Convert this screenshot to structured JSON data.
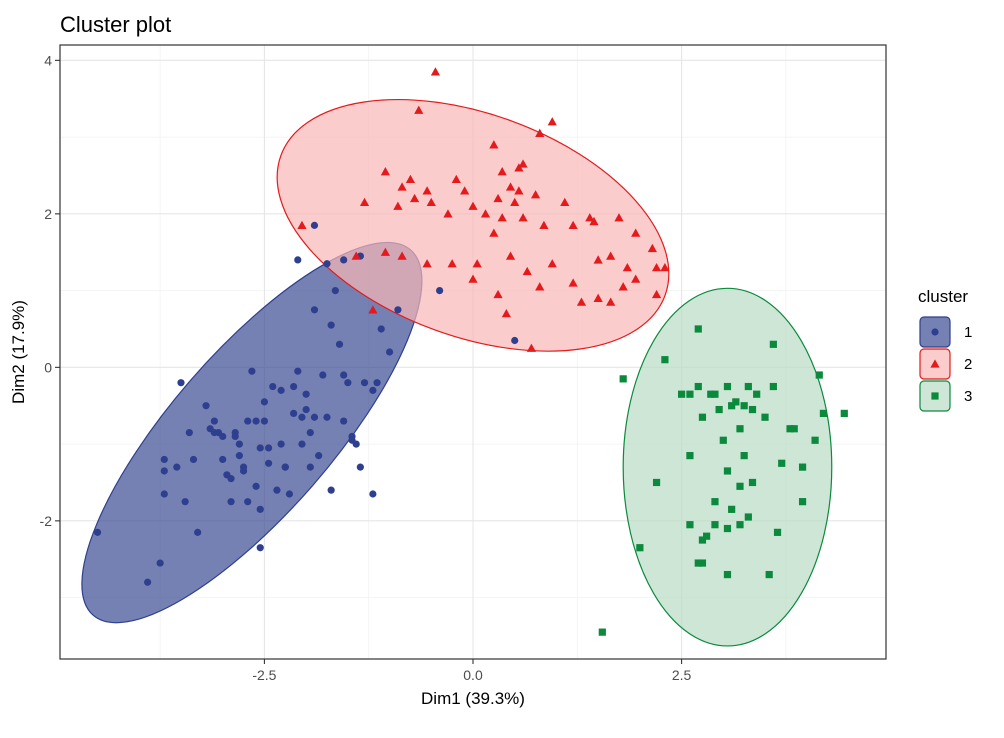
{
  "chart_data": {
    "type": "scatter",
    "title": "Cluster plot",
    "xlabel": "Dim1 (39.3%)",
    "ylabel": "Dim2 (17.9%)",
    "xlim": [
      -4.95,
      4.95
    ],
    "ylim": [
      -3.8,
      4.2
    ],
    "x_ticks": [
      {
        "value": -2.5,
        "label": "-2.5"
      },
      {
        "value": 0,
        "label": "0.0"
      },
      {
        "value": 2.5,
        "label": "2.5"
      }
    ],
    "y_ticks": [
      {
        "value": -2,
        "label": "-2"
      },
      {
        "value": 0,
        "label": "0"
      },
      {
        "value": 2,
        "label": "2"
      },
      {
        "value": 4,
        "label": "4"
      }
    ],
    "grid": true,
    "legend": {
      "title": "cluster",
      "position": "right"
    },
    "series": [
      {
        "name": "1",
        "marker": "circle",
        "color": "#2e3f8f",
        "fill": "#3b4a93",
        "ellipse": {
          "cx": -2.65,
          "cy": -0.85,
          "rx": 2.9,
          "ry": 1.05,
          "angle_deg": 49
        },
        "points": [
          [
            -4.5,
            -2.15
          ],
          [
            -3.9,
            -2.8
          ],
          [
            -3.75,
            -2.55
          ],
          [
            -3.7,
            -1.65
          ],
          [
            -3.7,
            -1.35
          ],
          [
            -3.7,
            -1.2
          ],
          [
            -3.55,
            -1.3
          ],
          [
            -3.5,
            -0.2
          ],
          [
            -3.45,
            -1.75
          ],
          [
            -3.4,
            -0.85
          ],
          [
            -3.35,
            -1.2
          ],
          [
            -3.3,
            -2.15
          ],
          [
            -3.2,
            -0.5
          ],
          [
            -3.15,
            -0.8
          ],
          [
            -3.1,
            -0.7
          ],
          [
            -3.05,
            -0.85
          ],
          [
            -3.0,
            -0.9
          ],
          [
            -3.0,
            -1.2
          ],
          [
            -2.95,
            -1.4
          ],
          [
            -2.9,
            -1.45
          ],
          [
            -2.9,
            -1.75
          ],
          [
            -2.85,
            -0.85
          ],
          [
            -2.8,
            -1.0
          ],
          [
            -2.8,
            -1.15
          ],
          [
            -2.75,
            -1.3
          ],
          [
            -2.75,
            -1.35
          ],
          [
            -2.7,
            -0.7
          ],
          [
            -2.7,
            -1.75
          ],
          [
            -2.65,
            -0.05
          ],
          [
            -2.6,
            -0.7
          ],
          [
            -2.6,
            -1.55
          ],
          [
            -2.55,
            -1.85
          ],
          [
            -2.55,
            -2.35
          ],
          [
            -2.5,
            -0.45
          ],
          [
            -2.5,
            -0.7
          ],
          [
            -2.45,
            -1.05
          ],
          [
            -2.45,
            -1.25
          ],
          [
            -2.4,
            -0.25
          ],
          [
            -2.35,
            -1.6
          ],
          [
            -2.3,
            -0.3
          ],
          [
            -2.3,
            -1.0
          ],
          [
            -2.25,
            -1.3
          ],
          [
            -2.2,
            -1.65
          ],
          [
            -2.15,
            -0.25
          ],
          [
            -2.15,
            -0.6
          ],
          [
            -2.1,
            -0.05
          ],
          [
            -2.05,
            -0.65
          ],
          [
            -2.05,
            -1.0
          ],
          [
            -2.0,
            -0.35
          ],
          [
            -2.0,
            -0.55
          ],
          [
            -1.95,
            -0.85
          ],
          [
            -1.95,
            -1.3
          ],
          [
            -1.9,
            0.75
          ],
          [
            -1.85,
            -1.15
          ],
          [
            -1.8,
            -0.1
          ],
          [
            -1.75,
            -0.65
          ],
          [
            -1.7,
            0.55
          ],
          [
            -1.7,
            -1.6
          ],
          [
            -1.6,
            0.3
          ],
          [
            -1.55,
            -0.1
          ],
          [
            -1.55,
            -0.7
          ],
          [
            -1.5,
            -0.2
          ],
          [
            -1.45,
            -0.95
          ],
          [
            -1.4,
            -1.0
          ],
          [
            -1.35,
            -1.3
          ],
          [
            -1.3,
            -0.2
          ],
          [
            -1.2,
            -0.3
          ],
          [
            -1.15,
            -0.2
          ],
          [
            -1.1,
            0.5
          ],
          [
            -1.0,
            0.2
          ],
          [
            -0.9,
            0.75
          ],
          [
            -1.35,
            1.45
          ],
          [
            -1.55,
            1.4
          ],
          [
            -1.75,
            1.35
          ],
          [
            -1.9,
            1.85
          ],
          [
            -2.1,
            1.4
          ],
          [
            -1.65,
            1.0
          ],
          [
            -1.2,
            -1.65
          ],
          [
            -0.4,
            1.0
          ],
          [
            0.5,
            0.35
          ],
          [
            -1.45,
            -0.9
          ],
          [
            -2.25,
            -1.3
          ],
          [
            -2.85,
            -0.9
          ],
          [
            -3.1,
            -0.85
          ],
          [
            -2.55,
            -1.05
          ],
          [
            -1.9,
            -0.65
          ]
        ]
      },
      {
        "name": "2",
        "marker": "triangle",
        "color": "#e41a1c",
        "fill": "#f8b7b7",
        "ellipse": {
          "cx": 0.0,
          "cy": 1.85,
          "rx": 2.45,
          "ry": 1.45,
          "angle_deg": -20
        },
        "points": [
          [
            -0.45,
            3.85
          ],
          [
            -0.65,
            3.35
          ],
          [
            0.95,
            3.2
          ],
          [
            0.25,
            2.9
          ],
          [
            0.8,
            3.05
          ],
          [
            0.6,
            2.65
          ],
          [
            0.55,
            2.6
          ],
          [
            0.35,
            2.55
          ],
          [
            -0.2,
            2.45
          ],
          [
            -0.1,
            2.3
          ],
          [
            -0.55,
            2.3
          ],
          [
            -0.75,
            2.45
          ],
          [
            -1.05,
            2.55
          ],
          [
            -0.85,
            2.35
          ],
          [
            -0.7,
            2.2
          ],
          [
            -0.5,
            2.15
          ],
          [
            0.45,
            2.35
          ],
          [
            0.55,
            2.3
          ],
          [
            0.5,
            2.15
          ],
          [
            0.3,
            2.2
          ],
          [
            0.0,
            2.1
          ],
          [
            -0.3,
            2.0
          ],
          [
            0.15,
            2.0
          ],
          [
            0.35,
            1.95
          ],
          [
            0.6,
            1.95
          ],
          [
            0.25,
            1.75
          ],
          [
            0.75,
            2.25
          ],
          [
            1.1,
            2.15
          ],
          [
            1.2,
            1.85
          ],
          [
            1.45,
            1.9
          ],
          [
            1.75,
            1.95
          ],
          [
            1.95,
            1.75
          ],
          [
            2.15,
            1.55
          ],
          [
            2.2,
            1.3
          ],
          [
            1.95,
            1.15
          ],
          [
            1.65,
            1.45
          ],
          [
            1.5,
            1.4
          ],
          [
            1.85,
            1.3
          ],
          [
            1.2,
            1.1
          ],
          [
            0.95,
            1.35
          ],
          [
            0.65,
            1.25
          ],
          [
            0.3,
            0.95
          ],
          [
            0.0,
            1.15
          ],
          [
            -0.25,
            1.35
          ],
          [
            -0.55,
            1.35
          ],
          [
            -0.85,
            1.45
          ],
          [
            -1.05,
            1.5
          ],
          [
            -1.4,
            1.45
          ],
          [
            -0.9,
            2.1
          ],
          [
            -1.3,
            2.15
          ],
          [
            -2.05,
            1.85
          ],
          [
            0.4,
            0.7
          ],
          [
            0.7,
            0.25
          ],
          [
            1.5,
            0.9
          ],
          [
            1.65,
            0.85
          ],
          [
            1.8,
            1.05
          ],
          [
            2.2,
            0.95
          ],
          [
            2.3,
            1.3
          ],
          [
            0.85,
            1.85
          ],
          [
            0.8,
            1.05
          ],
          [
            0.05,
            1.35
          ],
          [
            -1.2,
            0.75
          ],
          [
            1.3,
            0.85
          ],
          [
            1.4,
            1.95
          ],
          [
            0.45,
            1.45
          ]
        ]
      },
      {
        "name": "3",
        "marker": "square",
        "color": "#0b8a3e",
        "fill": "#b9dcc5",
        "ellipse": {
          "cx": 3.05,
          "cy": -1.3,
          "rx": 1.25,
          "ry": 2.33,
          "angle_deg": 0
        },
        "points": [
          [
            2.7,
            0.5
          ],
          [
            3.6,
            0.3
          ],
          [
            2.3,
            0.1
          ],
          [
            1.8,
            -0.15
          ],
          [
            2.6,
            -0.35
          ],
          [
            2.7,
            -0.25
          ],
          [
            2.85,
            -0.35
          ],
          [
            2.95,
            -0.55
          ],
          [
            3.05,
            -0.25
          ],
          [
            3.15,
            -0.45
          ],
          [
            3.3,
            -0.25
          ],
          [
            3.25,
            -0.5
          ],
          [
            3.4,
            -0.35
          ],
          [
            3.5,
            -0.65
          ],
          [
            3.6,
            -0.25
          ],
          [
            3.85,
            -0.8
          ],
          [
            4.15,
            -0.1
          ],
          [
            4.2,
            -0.6
          ],
          [
            4.45,
            -0.6
          ],
          [
            2.5,
            -0.35
          ],
          [
            2.75,
            -0.65
          ],
          [
            3.1,
            -0.5
          ],
          [
            3.2,
            -0.8
          ],
          [
            3.25,
            -1.15
          ],
          [
            3.0,
            -0.95
          ],
          [
            2.6,
            -1.15
          ],
          [
            3.05,
            -1.35
          ],
          [
            3.7,
            -1.25
          ],
          [
            3.95,
            -1.3
          ],
          [
            4.1,
            -0.95
          ],
          [
            3.35,
            -1.5
          ],
          [
            3.2,
            -1.55
          ],
          [
            2.9,
            -1.75
          ],
          [
            2.2,
            -1.5
          ],
          [
            3.1,
            -1.85
          ],
          [
            3.2,
            -2.05
          ],
          [
            3.3,
            -1.95
          ],
          [
            3.95,
            -1.75
          ],
          [
            2.9,
            -2.05
          ],
          [
            2.6,
            -2.05
          ],
          [
            2.75,
            -2.25
          ],
          [
            2.8,
            -2.2
          ],
          [
            3.05,
            -2.1
          ],
          [
            3.65,
            -2.15
          ],
          [
            2.0,
            -2.35
          ],
          [
            2.7,
            -2.55
          ],
          [
            2.75,
            -2.55
          ],
          [
            3.05,
            -2.7
          ],
          [
            3.55,
            -2.7
          ],
          [
            1.55,
            -3.45
          ],
          [
            2.9,
            -0.35
          ],
          [
            3.35,
            -0.55
          ],
          [
            3.8,
            -0.8
          ]
        ]
      }
    ]
  }
}
